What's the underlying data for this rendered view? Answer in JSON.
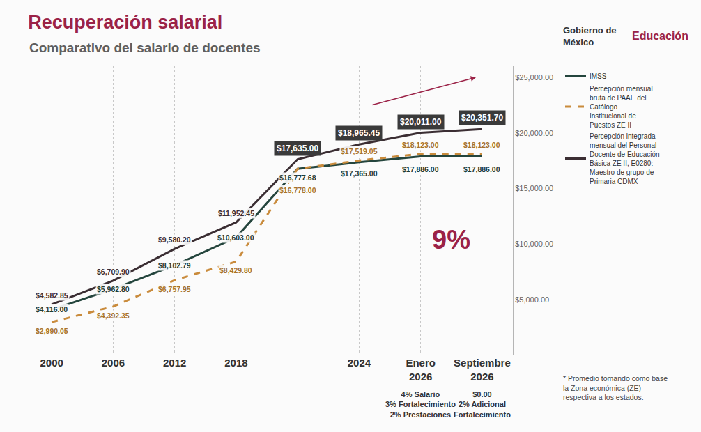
{
  "chart_data": {
    "type": "line",
    "title": "Recuperación salarial",
    "subtitle": "Comparativo del salario de docentes",
    "header": [
      "Gobierno de México",
      "Educación"
    ],
    "categories": [
      "2000",
      "2006",
      "2012",
      "2018",
      null,
      "2024",
      "Enero 2026",
      "Septiembre 2026"
    ],
    "category_notes": [
      null,
      null,
      null,
      null,
      null,
      null,
      [
        "4% Salario",
        "3% Fortalecimiento",
        "2% Prestaciones"
      ],
      [
        "$0.00",
        "2% Adicional",
        "Fortalecimiento"
      ]
    ],
    "series": [
      {
        "name": "IMSS",
        "color": "#24453d",
        "line_style": "solid",
        "values": [
          4116.0,
          5962.8,
          8102.79,
          10603.0,
          16777.68,
          17365.0,
          17886.0,
          17886.0
        ],
        "value_labels": [
          "$4,116.00",
          "$5,962.80",
          "$8,102.79",
          "$10,603.00",
          "$16,777.68",
          "$17,365.00",
          "$17,886.00",
          "$17,886.00"
        ]
      },
      {
        "name": "Percepción mensual bruta de PAAE del Catálogo Institucional de Puestos ZE II",
        "color": "#c98b3c",
        "line_style": "dash",
        "values": [
          2990.05,
          4392.35,
          6757.95,
          8429.8,
          16778.0,
          17519.05,
          18123.0,
          18123.0
        ],
        "value_labels": [
          "$2,990.05",
          "$4,392.35",
          "$6,757.95",
          "$8,429.80",
          "$16,778.00",
          "$17,519.05",
          "$18,123.00",
          "$18,123.00"
        ]
      },
      {
        "name": "Percepción integrada mensual del Personal Docente de Educación Básica ZE II, E0280: Maestro de grupo de Primaria CDMX",
        "color": "#3b2e33",
        "line_style": "solid",
        "values": [
          4582.85,
          6709.9,
          9580.2,
          11952.45,
          17635.0,
          18965.45,
          20011.0,
          20351.7
        ],
        "value_labels": [
          "$4,582.85",
          "$6,709.90",
          "$9,580.20",
          "$11,952.45",
          "$17,635.00",
          "$18,965.45",
          "$20,011.00",
          "$20,351.70"
        ]
      }
    ],
    "ylim": [
      0,
      26000
    ],
    "yticks": [
      {
        "value": 5000,
        "label": "$5,000.00"
      },
      {
        "value": 10000,
        "label": "$10,000.00"
      },
      {
        "value": 15000,
        "label": "$15,000.00"
      },
      {
        "value": 20000,
        "label": "$20,000.00"
      },
      {
        "value": 25000,
        "label": "$25,000.00"
      }
    ],
    "grid": true,
    "legend": "right",
    "data_labels": true,
    "annotations": [
      "9%"
    ],
    "footnote": "* Promedio tomando como base la Zona económica (ZE) respectiva a los estados."
  }
}
